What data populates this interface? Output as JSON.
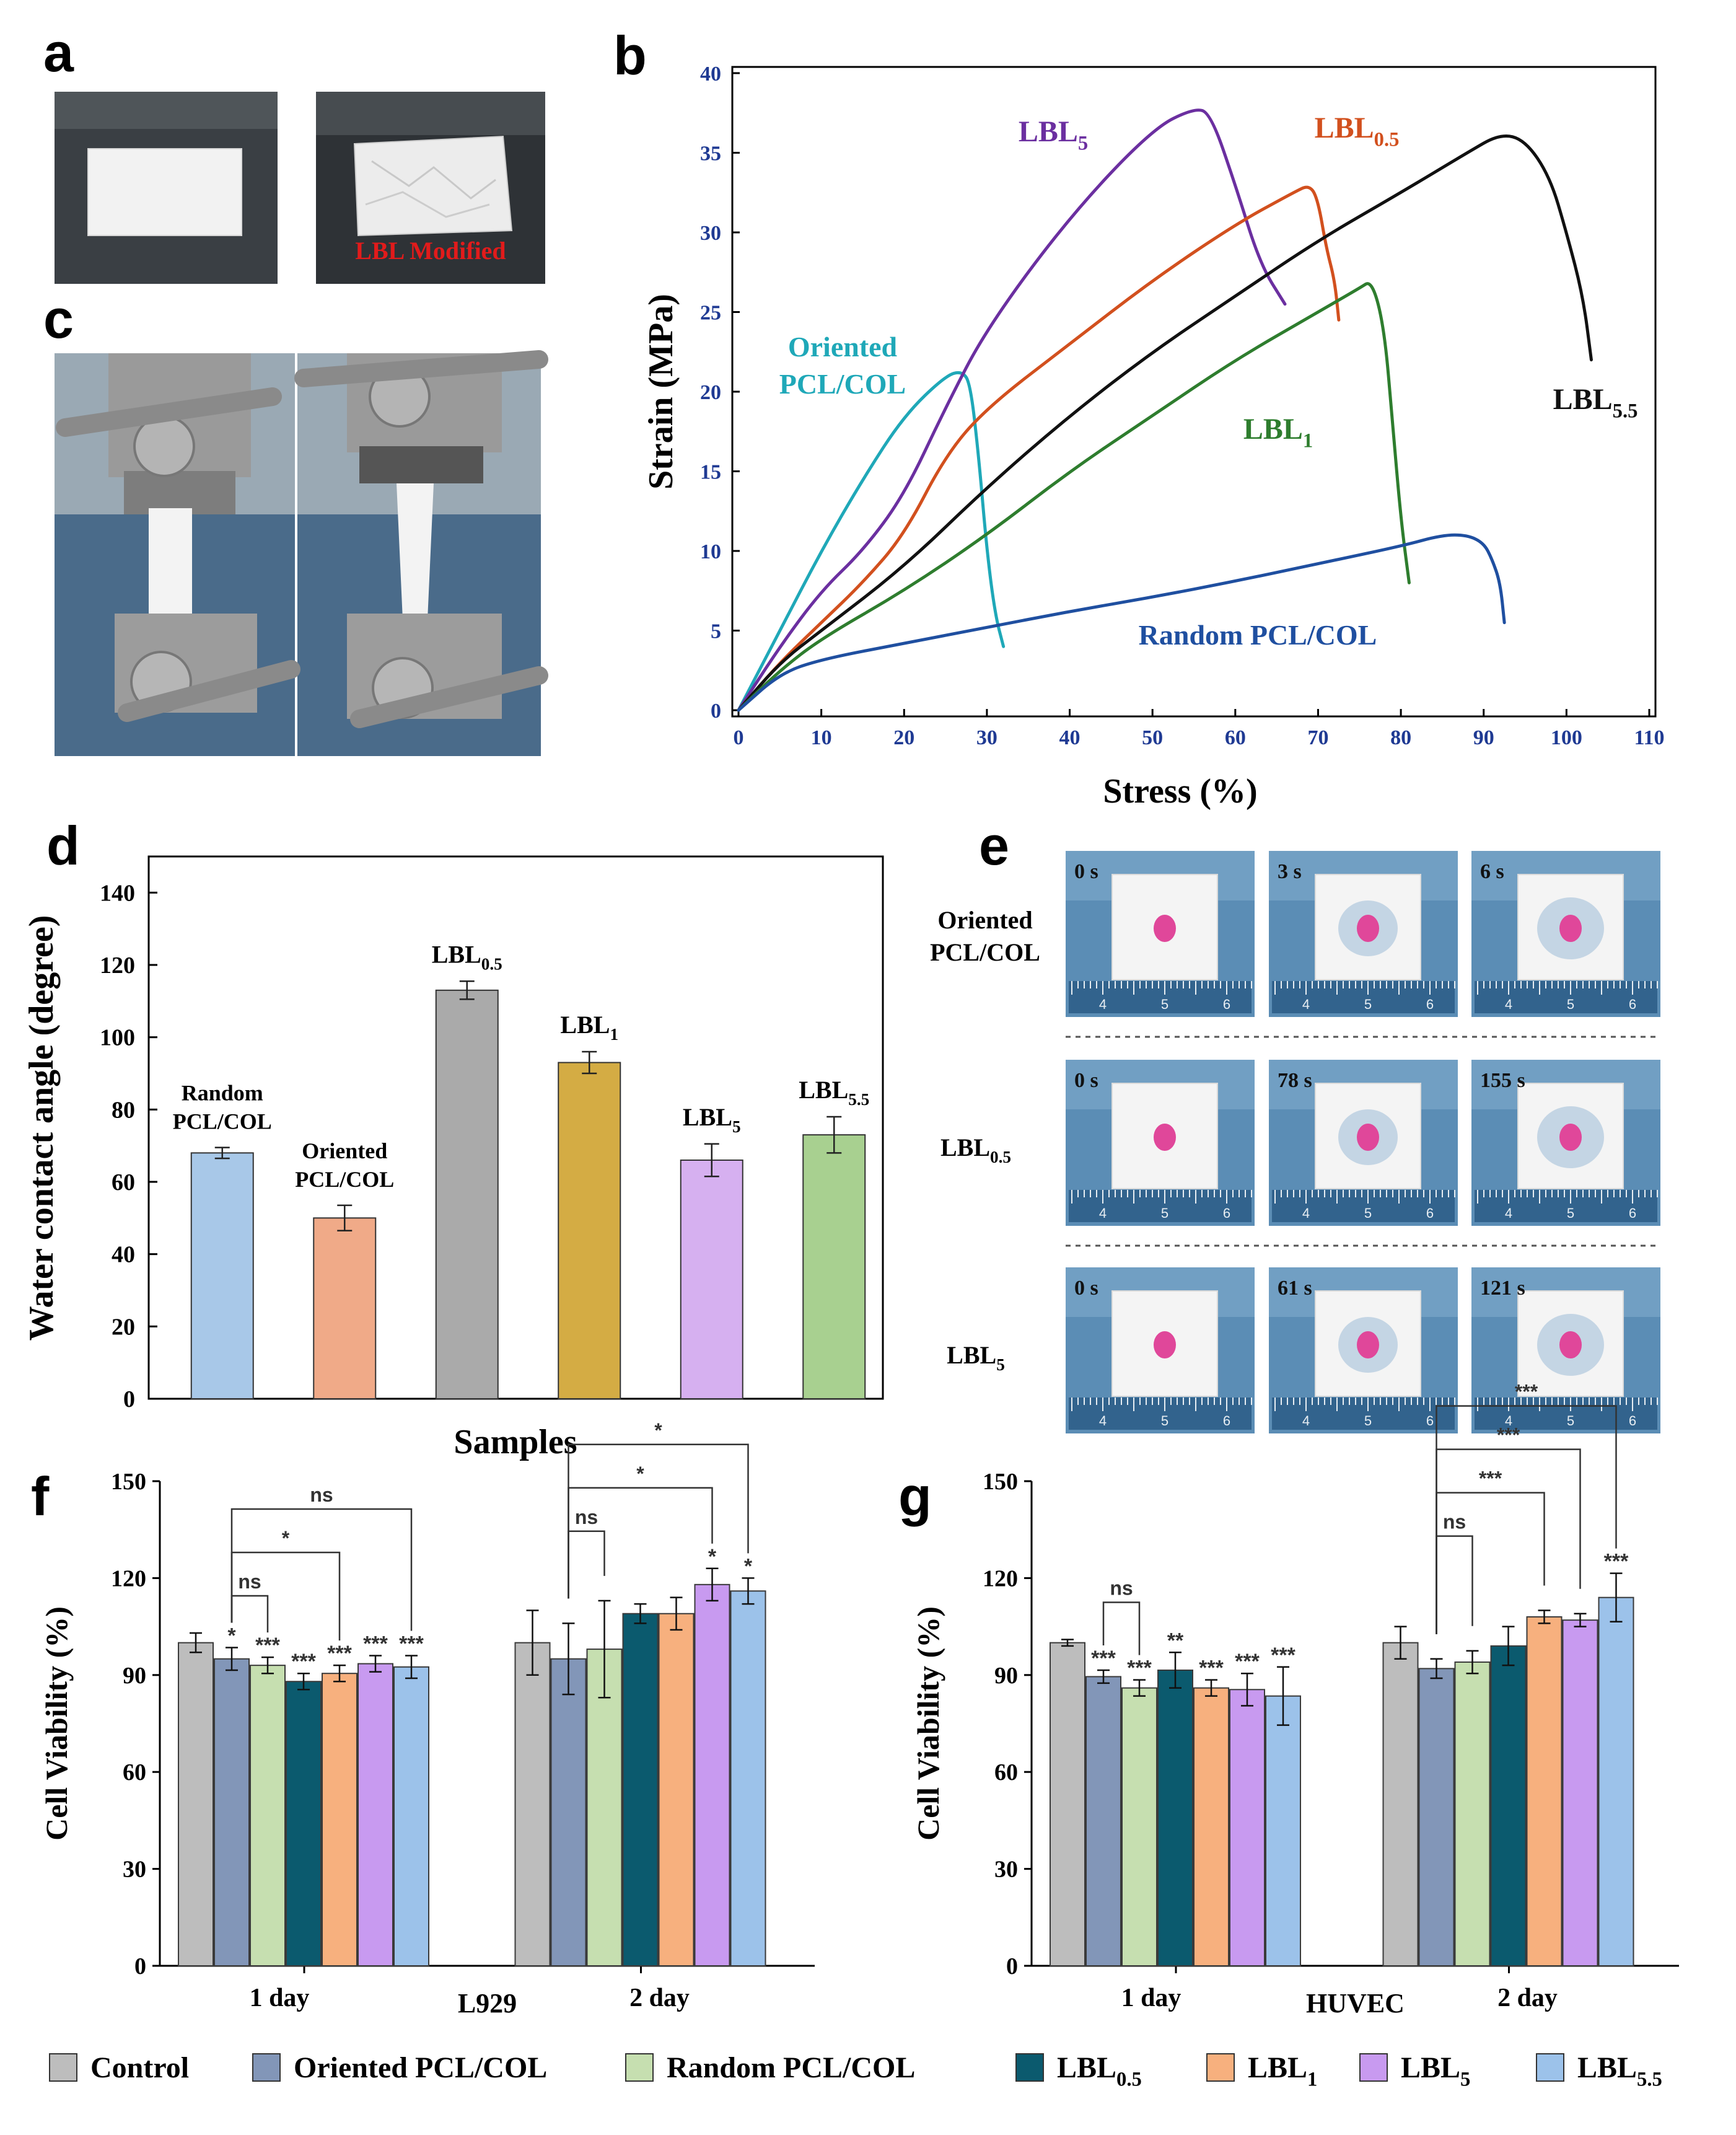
{
  "panels": {
    "a": {
      "letter": "a",
      "label": "LBL Modified"
    },
    "c": {
      "letter": "c"
    },
    "e": {
      "letter": "e",
      "rows": [
        {
          "label_lines": [
            "Oriented",
            "PCL/COL"
          ],
          "times": [
            "0 s",
            "3 s",
            "6 s"
          ]
        },
        {
          "label_lines": [
            "LBL",
            "0.5"
          ],
          "times": [
            "0 s",
            "78 s",
            "155 s"
          ]
        },
        {
          "label_lines": [
            "LBL",
            "5"
          ],
          "times": [
            "0 s",
            "61 s",
            "121 s"
          ]
        }
      ],
      "ruler_numbers": [
        "4",
        "5",
        "6"
      ]
    }
  },
  "colors": {
    "oriented_curve": "#1fa8b8",
    "lbl5_curve": "#6b2fa0",
    "lbl05_curve": "#d2501e",
    "lbl55_curve": "#111111",
    "lbl1_curve": "#2e7d2e",
    "random_curve": "#1f4fa0",
    "control_bar": "#bdbdbd",
    "oriented_bar": "#8296b8",
    "random_bar": "#c6dfb0",
    "lbl05_bar": "#0b5a6e",
    "lbl1_bar": "#f7b07e",
    "lbl5_bar": "#c89af0",
    "lbl55_bar": "#9cc2ea",
    "d_random": "#a8c8e8",
    "d_oriented": "#f0aa88",
    "d_lbl05": "#aaaaaa",
    "d_lbl1": "#d4ac44",
    "d_lbl5": "#d6b0f0",
    "d_lbl55": "#a8d090"
  },
  "chart_data": [
    {
      "id": "b",
      "letter": "b",
      "type": "line",
      "xlabel": "Stress (%)",
      "ylabel": "Strain (MPa)",
      "xlim": [
        0,
        110
      ],
      "ylim": [
        0,
        40
      ],
      "xticks": [
        "0",
        "10",
        "20",
        "30",
        "40",
        "50",
        "60",
        "70",
        "80",
        "90",
        "100",
        "110"
      ],
      "yticks": [
        "0",
        "5",
        "10",
        "15",
        "20",
        "25",
        "30",
        "35",
        "40"
      ],
      "series": [
        {
          "name": "Oriented PCL/COL",
          "label_lines": [
            "Oriented",
            "PCL/COL"
          ],
          "color_key": "oriented_curve",
          "x": [
            0,
            5,
            10,
            15,
            20,
            25,
            27,
            28,
            29,
            30,
            31,
            32
          ],
          "y": [
            0,
            5,
            10,
            14.5,
            18.5,
            21,
            21.3,
            20.5,
            16,
            10,
            6,
            4
          ]
        },
        {
          "name": "LBL5",
          "label_base": "LBL",
          "label_sub": "5",
          "color_key": "lbl5_curve",
          "x": [
            0,
            5,
            10,
            15,
            20,
            25,
            30,
            40,
            50,
            55,
            57,
            60,
            63,
            66
          ],
          "y": [
            0,
            4,
            7.5,
            10,
            13.5,
            19,
            24,
            31,
            36.5,
            37.8,
            37.5,
            33,
            28,
            25.5
          ]
        },
        {
          "name": "LBL0.5",
          "label_base": "LBL",
          "label_sub": "0.5",
          "color_key": "lbl05_curve",
          "x": [
            0,
            5,
            10,
            15,
            20,
            25,
            30,
            40,
            50,
            60,
            67,
            69,
            70,
            71,
            72,
            72.5
          ],
          "y": [
            0,
            3,
            5.5,
            8,
            11,
            16,
            19,
            23,
            27,
            30.5,
            32.5,
            33,
            32,
            29,
            27,
            24.5
          ]
        },
        {
          "name": "LBL5.5",
          "label_base": "LBL",
          "label_sub": "5.5",
          "color_key": "lbl55_curve",
          "x": [
            0,
            5,
            10,
            20,
            30,
            40,
            50,
            60,
            70,
            80,
            88,
            92,
            95,
            98,
            100,
            102,
            103
          ],
          "y": [
            0,
            3,
            5,
            9,
            14,
            18.5,
            22.5,
            26,
            29.5,
            32.5,
            35,
            36.2,
            35.8,
            33.5,
            30,
            26,
            22
          ]
        },
        {
          "name": "LBL1",
          "label_base": "LBL",
          "label_sub": "1",
          "color_key": "lbl1_curve",
          "x": [
            0,
            5,
            10,
            20,
            30,
            40,
            50,
            60,
            70,
            75,
            76.5,
            78,
            79,
            80,
            81
          ],
          "y": [
            0,
            2.5,
            4.5,
            7.5,
            11,
            15,
            18.5,
            22,
            25,
            26.5,
            27,
            24,
            18,
            12,
            8
          ]
        },
        {
          "name": "Random PCL/COL",
          "label_lines": [
            "Random PCL/COL"
          ],
          "color_key": "random_curve",
          "x": [
            0,
            5,
            10,
            20,
            30,
            40,
            50,
            60,
            70,
            80,
            85,
            88,
            90,
            91,
            92,
            92.5
          ],
          "y": [
            0,
            2.3,
            3.2,
            4.2,
            5.2,
            6.2,
            7.1,
            8.1,
            9.2,
            10.3,
            11,
            11,
            10.5,
            9.5,
            8,
            5.5
          ]
        }
      ]
    },
    {
      "id": "d",
      "letter": "d",
      "type": "bar",
      "xlabel": "Samples",
      "ylabel": "Water contact angle (degree)",
      "ylim": [
        0,
        150
      ],
      "yticks": [
        "0",
        "20",
        "40",
        "60",
        "80",
        "100",
        "120",
        "140"
      ],
      "bars": [
        {
          "label_lines": [
            "Random",
            "PCL/COL"
          ],
          "value": 68,
          "err": 1.5,
          "color_key": "d_random"
        },
        {
          "label_lines": [
            "Oriented",
            "PCL/COL"
          ],
          "value": 50,
          "err": 3.5,
          "color_key": "d_oriented"
        },
        {
          "label_base": "LBL",
          "label_sub": "0.5",
          "value": 113,
          "err": 2.5,
          "color_key": "d_lbl05"
        },
        {
          "label_base": "LBL",
          "label_sub": "1",
          "value": 93,
          "err": 3,
          "color_key": "d_lbl1"
        },
        {
          "label_base": "LBL",
          "label_sub": "5",
          "value": 66,
          "err": 4.5,
          "color_key": "d_lbl5"
        },
        {
          "label_base": "LBL",
          "label_sub": "5.5",
          "value": 73,
          "err": 5,
          "color_key": "d_lbl55"
        }
      ]
    },
    {
      "id": "f",
      "letter": "f",
      "type": "bar",
      "ylabel": "Cell Viability (%)",
      "cell_line": "L929",
      "ylim": [
        0,
        150
      ],
      "yticks": [
        "0",
        "30",
        "60",
        "90",
        "120",
        "150"
      ],
      "categories": [
        "1 day",
        "2 day"
      ],
      "series": [
        {
          "name": "Control",
          "color_key": "control_bar",
          "values": [
            100,
            100
          ],
          "errs": [
            3,
            10
          ],
          "stars": [
            "",
            ""
          ]
        },
        {
          "name": "Oriented PCL/COL",
          "color_key": "oriented_bar",
          "values": [
            95,
            95
          ],
          "errs": [
            3.5,
            11
          ],
          "stars": [
            "*",
            ""
          ]
        },
        {
          "name": "Random PCL/COL",
          "color_key": "random_bar",
          "values": [
            93,
            98
          ],
          "errs": [
            2.5,
            15
          ],
          "stars": [
            "***",
            ""
          ]
        },
        {
          "name": "LBL0.5",
          "color_key": "lbl05_bar",
          "values": [
            88,
            109
          ],
          "errs": [
            2.5,
            3
          ],
          "stars": [
            "***",
            ""
          ]
        },
        {
          "name": "LBL1",
          "color_key": "lbl1_bar",
          "values": [
            90.5,
            109
          ],
          "errs": [
            2.5,
            5
          ],
          "stars": [
            "***",
            ""
          ]
        },
        {
          "name": "LBL5",
          "color_key": "lbl5_bar",
          "values": [
            93.5,
            118
          ],
          "errs": [
            2.5,
            5
          ],
          "stars": [
            "***",
            "*"
          ]
        },
        {
          "name": "LBL5.5",
          "color_key": "lbl55_bar",
          "values": [
            92.5,
            116
          ],
          "errs": [
            3.5,
            4
          ],
          "stars": [
            "***",
            "*"
          ]
        }
      ],
      "brackets": [
        {
          "group": 0,
          "from": 1,
          "to": 2,
          "label": "ns",
          "level": 0
        },
        {
          "group": 0,
          "from": 1,
          "to": 4,
          "label": "*",
          "level": 1
        },
        {
          "group": 0,
          "from": 1,
          "to": 6,
          "label": "ns",
          "level": 2
        },
        {
          "group": 1,
          "from": 1,
          "to": 2,
          "label": "ns",
          "level": 0
        },
        {
          "group": 1,
          "from": 1,
          "to": 5,
          "label": "*",
          "level": 1
        },
        {
          "group": 1,
          "from": 1,
          "to": 6,
          "label": "*",
          "level": 2
        }
      ]
    },
    {
      "id": "g",
      "letter": "g",
      "type": "bar",
      "ylabel": "Cell Viability (%)",
      "cell_line": "HUVEC",
      "ylim": [
        0,
        150
      ],
      "yticks": [
        "0",
        "30",
        "60",
        "90",
        "120",
        "150"
      ],
      "categories": [
        "1 day",
        "2 day"
      ],
      "series": [
        {
          "name": "Control",
          "color_key": "control_bar",
          "values": [
            100,
            100
          ],
          "errs": [
            1,
            5
          ],
          "stars": [
            "",
            ""
          ]
        },
        {
          "name": "Oriented PCL/COL",
          "color_key": "oriented_bar",
          "values": [
            89.5,
            92
          ],
          "errs": [
            2,
            3
          ],
          "stars": [
            "***",
            ""
          ]
        },
        {
          "name": "Random PCL/COL",
          "color_key": "random_bar",
          "values": [
            86,
            94
          ],
          "errs": [
            2.5,
            3.5
          ],
          "stars": [
            "***",
            ""
          ]
        },
        {
          "name": "LBL0.5",
          "color_key": "lbl05_bar",
          "values": [
            91.5,
            99
          ],
          "errs": [
            5.5,
            6
          ],
          "stars": [
            "**",
            ""
          ]
        },
        {
          "name": "LBL1",
          "color_key": "lbl1_bar",
          "values": [
            86,
            108
          ],
          "errs": [
            2.5,
            2
          ],
          "stars": [
            "***",
            ""
          ]
        },
        {
          "name": "LBL5",
          "color_key": "lbl5_bar",
          "values": [
            85.5,
            107
          ],
          "errs": [
            5,
            2
          ],
          "stars": [
            "***",
            ""
          ]
        },
        {
          "name": "LBL5.5",
          "color_key": "lbl55_bar",
          "values": [
            83.5,
            114
          ],
          "errs": [
            9,
            7.5
          ],
          "stars": [
            "***",
            "***"
          ]
        }
      ],
      "brackets": [
        {
          "group": 0,
          "from": 1,
          "to": 2,
          "label": "ns",
          "level": 0
        },
        {
          "group": 1,
          "from": 1,
          "to": 2,
          "label": "ns",
          "level": 0
        },
        {
          "group": 1,
          "from": 1,
          "to": 4,
          "label": "***",
          "level": 1
        },
        {
          "group": 1,
          "from": 1,
          "to": 5,
          "label": "***",
          "level": 2
        },
        {
          "group": 1,
          "from": 1,
          "to": 6,
          "label": "***",
          "level": 3
        }
      ]
    }
  ],
  "legend": [
    {
      "base": "Control",
      "sub": "",
      "color_key": "control_bar"
    },
    {
      "base": "Oriented PCL/COL",
      "sub": "",
      "color_key": "oriented_bar"
    },
    {
      "base": "Random PCL/COL",
      "sub": "",
      "color_key": "random_bar"
    },
    {
      "base": "LBL",
      "sub": "0.5",
      "color_key": "lbl05_bar"
    },
    {
      "base": "LBL",
      "sub": "1",
      "color_key": "lbl1_bar"
    },
    {
      "base": "LBL",
      "sub": "5",
      "color_key": "lbl5_bar"
    },
    {
      "base": "LBL",
      "sub": "5.5",
      "color_key": "lbl55_bar"
    }
  ]
}
